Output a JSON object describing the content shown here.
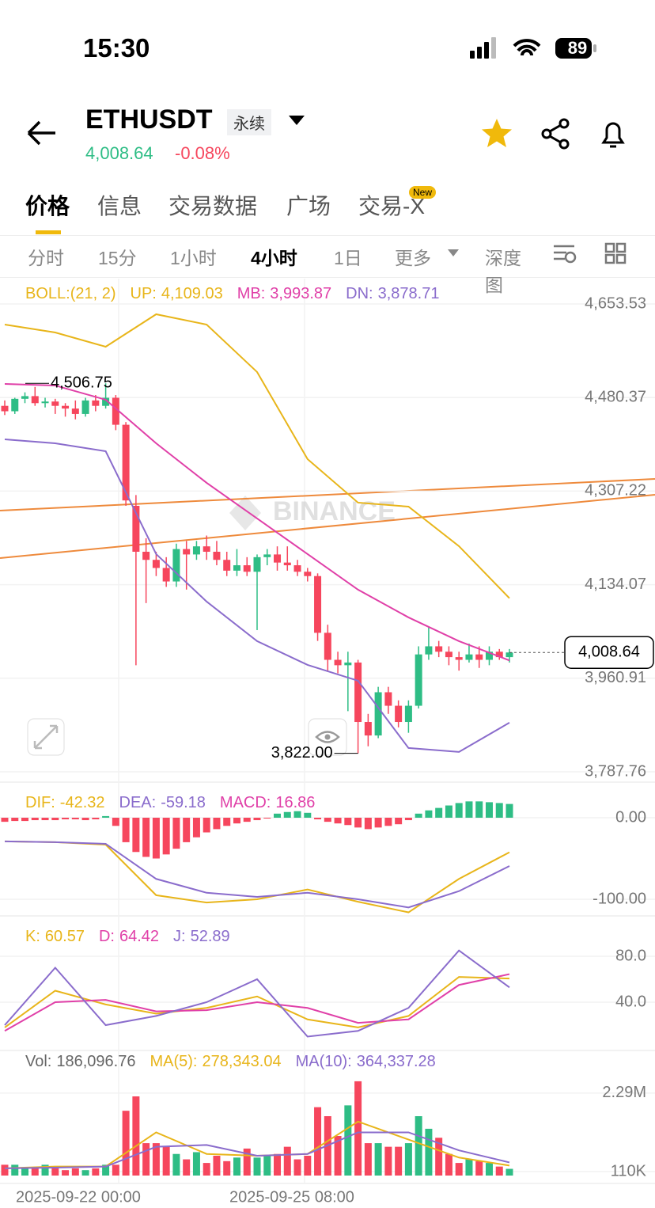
{
  "status": {
    "time": "15:30",
    "battery": "89"
  },
  "header": {
    "symbol": "ETHUSDT",
    "tag": "永续",
    "price": "4,008.64",
    "change": "-0.08%"
  },
  "tabs": [
    "价格",
    "信息",
    "交易数据",
    "广场",
    "交易-X"
  ],
  "badge": "New",
  "intervals": [
    "分时",
    "15分",
    "1小时",
    "4小时",
    "1日",
    "更多",
    "深度图"
  ],
  "active_interval": 3,
  "chart": {
    "up_color": "#2ebd85",
    "down_color": "#f6465d",
    "watermark": "BINANCE",
    "candles": {
      "open": [
        4465,
        4455,
        4478,
        4483,
        4470,
        4473,
        4465,
        4460,
        4450,
        4475,
        4465,
        4480,
        4430,
        4280,
        4195,
        4180,
        4165,
        4140,
        4200,
        4190,
        4205,
        4195,
        4180,
        4160,
        4170,
        4158,
        4185,
        4190,
        4175,
        4170,
        4158,
        4150,
        4045,
        3995,
        3985,
        3990,
        3880,
        3855,
        3935,
        3910,
        3880,
        3910,
        4005,
        4020,
        4010,
        4000,
        3995,
        4005,
        3995,
        4010,
        4000
      ],
      "high": [
        4475,
        4480,
        4490,
        4500,
        4480,
        4478,
        4470,
        4475,
        4480,
        4485,
        4506.75,
        4485,
        4435,
        4300,
        4220,
        4195,
        4185,
        4210,
        4215,
        4215,
        4225,
        4215,
        4195,
        4200,
        4185,
        4190,
        4200,
        4205,
        4205,
        4180,
        4165,
        4155,
        4060,
        4010,
        4010,
        3995,
        3895,
        3945,
        3945,
        3920,
        3920,
        4020,
        4055,
        4030,
        4020,
        4010,
        4025,
        4020,
        4020,
        4015,
        4015
      ],
      "low": [
        4448,
        4450,
        4470,
        4465,
        4462,
        4450,
        4445,
        4440,
        4445,
        4455,
        4460,
        4420,
        4280,
        3985,
        4100,
        4150,
        4130,
        4130,
        4125,
        4180,
        4180,
        4170,
        4150,
        4150,
        4150,
        4050,
        4170,
        4160,
        4160,
        4150,
        4140,
        4030,
        3975,
        3970,
        3900,
        3822,
        3835,
        3850,
        3895,
        3870,
        3860,
        3905,
        3995,
        4000,
        3985,
        3975,
        3990,
        3980,
        3985,
        3995,
        3990
      ],
      "close": [
        4455,
        4478,
        4483,
        4470,
        4473,
        4465,
        4460,
        4450,
        4475,
        4465,
        4480,
        4430,
        4290,
        4195,
        4180,
        4165,
        4140,
        4200,
        4190,
        4205,
        4195,
        4180,
        4160,
        4170,
        4158,
        4185,
        4190,
        4175,
        4170,
        4158,
        4150,
        4045,
        3995,
        3985,
        3990,
        3880,
        3855,
        3935,
        3910,
        3880,
        3910,
        4005,
        4020,
        4010,
        4000,
        3995,
        4005,
        3995,
        4010,
        4000,
        4008.64
      ]
    },
    "price_ylim": [
      3768.7,
      4700.4
    ],
    "price_yticks": [
      {
        "value": 4653.53,
        "label": "4,653.53"
      },
      {
        "value": 4480.37,
        "label": "4,480.37"
      },
      {
        "value": 4307.22,
        "label": "4,307.22"
      },
      {
        "value": 4134.07,
        "label": "4,134.07"
      },
      {
        "value": 3960.91,
        "label": "3,960.91"
      },
      {
        "value": 3787.76,
        "label": "3,787.76"
      }
    ],
    "high_label": {
      "value": 4506.75,
      "label": "4,506.75"
    },
    "low_label": {
      "value": 3822,
      "label": "3,822.00"
    },
    "last": {
      "value": 4008.64,
      "label": "4,008.64"
    },
    "line_x": [
      0,
      5,
      10,
      15,
      20,
      25,
      30,
      35,
      40,
      45,
      50
    ],
    "boll": {
      "title": "BOLL:(21, 2)",
      "lines": [
        {
          "name": "UP:",
          "value_label": "4,109.03",
          "color": "#e8b51a",
          "values": [
            4615.4,
            4600.8,
            4574.4,
            4634.5,
            4615.4,
            4527.6,
            4366.4,
            4285.9,
            4278.5,
            4205.3,
            4109.03
          ]
        },
        {
          "name": "MB:",
          "value_label": "3,993.87",
          "color": "#e040a8",
          "values": [
            4505.6,
            4502.7,
            4476.3,
            4395.7,
            4322.5,
            4256.6,
            4190.7,
            4124.8,
            4073.5,
            4029.6,
            3993.87
          ]
        },
        {
          "name": "DN:",
          "value_label": "3,878.71",
          "color": "#8a6ccc",
          "values": [
            4403,
            4395.7,
            4381,
            4190.7,
            4102.8,
            4029.6,
            3985.6,
            3956.3,
            3831.8,
            3824.5,
            3878.71
          ]
        }
      ]
    },
    "macd": {
      "ylim": [
        -118.4,
        41.7
      ],
      "yticks": [
        {
          "value": 0,
          "label": "0.00"
        },
        {
          "value": -100,
          "label": "-100.00"
        }
      ],
      "hist_name": "MACD:",
      "hist_label": "16.86",
      "hist_color": "#e040a8",
      "hist": [
        -5,
        -4,
        -4,
        -3,
        -3,
        -3,
        -2,
        -2,
        -3,
        -2,
        2,
        -10,
        -30,
        -42,
        -48,
        -50,
        -45,
        -38,
        -30,
        -24,
        -18,
        -14,
        -10,
        -7,
        -5,
        -3,
        -1,
        5,
        7,
        8,
        6,
        -2,
        -5,
        -7,
        -9,
        -12,
        -14,
        -12,
        -10,
        -8,
        -3,
        5,
        9,
        12,
        15,
        18,
        20,
        20,
        19,
        18,
        16.86
      ],
      "lines": [
        {
          "name": "DIF:",
          "value_label": "-42.32",
          "color": "#e8b51a",
          "values": [
            -29,
            -30,
            -33,
            -95,
            -104,
            -100,
            -88,
            -103,
            -116,
            -75,
            -42.32
          ]
        },
        {
          "name": "DEA:",
          "value_label": "-59.18",
          "color": "#8a6ccc",
          "values": [
            -29,
            -30,
            -32,
            -75,
            -92,
            -97,
            -92,
            -100,
            -110,
            -90,
            -59.18
          ]
        }
      ]
    },
    "kdj": {
      "ylim": [
        -0.7,
        113.1
      ],
      "yticks": [
        {
          "value": 80,
          "label": "80.0"
        },
        {
          "value": 40,
          "label": "40.0"
        }
      ],
      "lines": [
        {
          "name": "K:",
          "value_label": "60.57",
          "color": "#e8b51a",
          "values": [
            18,
            50,
            38,
            30,
            35,
            45,
            25,
            18,
            28,
            62,
            60.57
          ]
        },
        {
          "name": "D:",
          "value_label": "64.42",
          "color": "#e040a8",
          "values": [
            15,
            40,
            42,
            32,
            33,
            40,
            35,
            22,
            25,
            55,
            64.42
          ]
        },
        {
          "name": "J:",
          "value_label": "52.89",
          "color": "#8a6ccc",
          "values": [
            20,
            70,
            20,
            28,
            40,
            60,
            10,
            15,
            35,
            85,
            52.89
          ]
        }
      ]
    },
    "vol": {
      "ylim": [
        -220000,
        3410000
      ],
      "yticks": [
        {
          "value": 2290000,
          "label": "2.29M"
        },
        {
          "value": 110000,
          "label": "110K"
        }
      ],
      "name": "Vol:",
      "value_label": "186,096.76",
      "values": [
        300000,
        300000,
        200000,
        200000,
        300000,
        200000,
        150000,
        200000,
        150000,
        200000,
        300000,
        300000,
        1800000,
        2200000,
        900000,
        900000,
        800000,
        600000,
        450000,
        650000,
        350000,
        550000,
        400000,
        500000,
        750000,
        500000,
        550000,
        600000,
        800000,
        450000,
        550000,
        1900000,
        1650000,
        1100000,
        1950000,
        2620000,
        900000,
        900000,
        800000,
        800000,
        900000,
        1650000,
        1300000,
        1050000,
        600000,
        350000,
        450000,
        400000,
        350000,
        250000,
        186096.76
      ],
      "lines": [
        {
          "name": "MA(5):",
          "value_label": "278,343.04",
          "color": "#e8b51a",
          "values": [
            200000,
            250000,
            250000,
            1200000,
            600000,
            550000,
            600000,
            1500000,
            1000000,
            500000,
            278343.04
          ]
        },
        {
          "name": "MA(10):",
          "value_label": "364,337.28",
          "color": "#8a6ccc",
          "values": [
            200000,
            220000,
            250000,
            800000,
            850000,
            550000,
            600000,
            1200000,
            1200000,
            700000,
            364337.28
          ]
        }
      ]
    },
    "dates": [
      "2025-09-22 00:00",
      "2025-09-25 08:00"
    ]
  }
}
